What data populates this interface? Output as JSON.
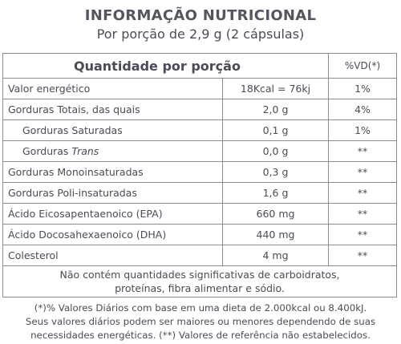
{
  "header": {
    "title": "INFORMAÇÃO NUTRICIONAL",
    "subtitle": "Por porção de 2,9 g (2 cápsulas)"
  },
  "table": {
    "header": [
      "Quantidade por porção",
      "%VD(*)"
    ],
    "rows": [
      {
        "label": "Valor energético",
        "amount": "18Kcal = 76kj",
        "vd": "1%"
      },
      {
        "label": "Gorduras Totais, das quais",
        "amount": "2,0 g",
        "vd": "4%"
      },
      {
        "label": "Gorduras Saturadas",
        "amount": "0,1 g",
        "vd": "1%",
        "indent": true
      },
      {
        "label": "Gorduras",
        "label_italic": "Trans",
        "amount": "0,0 g",
        "vd": "**",
        "indent": true
      },
      {
        "label": "Gorduras Monoinsaturadas",
        "amount": "0,3 g",
        "vd": "**"
      },
      {
        "label": "Gorduras Poli-insaturadas",
        "amount": "1,6 g",
        "vd": "**"
      },
      {
        "label": "Ácido Eicosapentaenoico (EPA)",
        "amount": "660 mg",
        "vd": "**"
      },
      {
        "label": "Ácido Docosahexaenoico (DHA)",
        "amount": "440 mg",
        "vd": "**"
      },
      {
        "label": "Colesterol",
        "amount": "4 mg",
        "vd": "**"
      }
    ],
    "note": [
      "Não contém quantidades significativas de carboidratos,",
      "proteínas, fibra alimentar e sódio."
    ]
  },
  "footnote": [
    "(*)% Valores Diários com base em uma dieta de 2.000kcal ou 8.400kJ.",
    "Seus valores diários podem ser maiores ou menores dependendo de suas",
    "necessidades energéticas. (**) Valores de referência não estabelecidos."
  ]
}
